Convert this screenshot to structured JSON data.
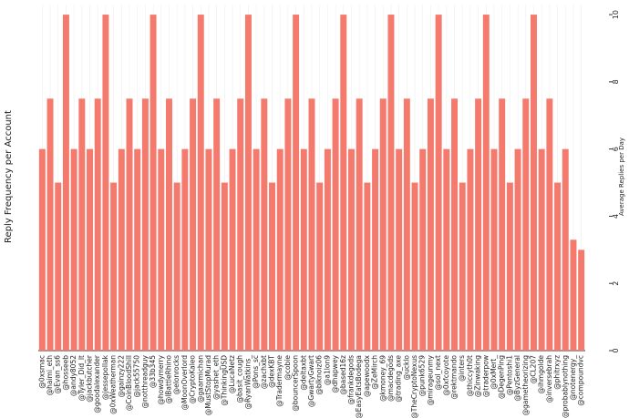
{
  "chart_data": {
    "type": "bar",
    "y_label": "Reply Frequency per Account",
    "y2_label": "Average Replies per Day",
    "categories": [
      "@0xsmac",
      "@haimi_eth",
      "@Evan_ss6",
      "@hosseeb",
      "@andy8052",
      "@Tyler_Did_It",
      "@jackbutcher",
      "@goodalexander",
      "@jessepollak",
      "@0xWeatherman",
      "@gainzy222",
      "@CoinBloodShill",
      "@jack55750",
      "@notthreadguy",
      "@33b345",
      "@howdymerry",
      "@lBattleRhino",
      "@elonrocks",
      "@MoonOverlord",
      "@CryptoKaleo",
      "@gaarmichan",
      "@MustStopMurad",
      "@yashet_eth",
      "@ThinkingUSD",
      "@LucaNetz",
      "@basit_cough",
      "@RyanWatkins_",
      "@Pons_sc",
      "@zachxbt",
      "@dexKBT",
      "@Tradermayne",
      "@cobie",
      "@bouncerSpoon",
      "@deltaxbt",
      "@GwartyGwart",
      "@blknoiz06",
      "@a1lon9",
      "@dhapwey",
      "@based16z",
      "@frankdegods",
      "@EasyEatsBodega",
      "@apewoodx",
      "@ZeMirch",
      "@kmoney_69",
      "@macdegods",
      "@trading_axe",
      "@ucklo",
      "@TheCryptoNexus",
      "@punk6529",
      "@mirageunmy",
      "@sol_next",
      "@0xfcoyote",
      "@rektmando",
      "@inters",
      "@thiccyth0t",
      "@Zinwaking",
      "@traderpow",
      "@0xMert_",
      "@DegenPing",
      "@Pentoshi1",
      "@ByzGeneral",
      "@gametheorizing",
      "@CL207",
      "@ihmgolde",
      "@inversebrah",
      "@phitrxyz",
      "@probablynothing",
      "@notenergy_",
      "@compoundvc"
    ],
    "values": [
      6,
      7.5,
      5,
      10,
      6,
      7.5,
      6,
      7.5,
      10,
      5,
      6,
      7.5,
      6,
      7.5,
      10,
      6,
      7.5,
      5,
      6,
      7.5,
      10,
      6,
      7.5,
      5,
      6,
      7.5,
      10,
      6,
      7.5,
      5,
      6,
      7.5,
      10,
      6,
      7.5,
      5,
      6,
      7.5,
      10,
      6,
      7.5,
      5,
      6,
      7.5,
      10,
      6,
      7.5,
      5,
      6,
      7.5,
      10,
      6,
      7.5,
      5,
      6,
      7.5,
      10,
      6,
      7.5,
      5,
      6,
      7.5,
      10,
      6,
      7.5,
      5,
      6,
      3.3,
      3
    ],
    "color": "#f47a6e",
    "ylim": [
      0,
      10.3
    ],
    "yticks": [
      0,
      2,
      4,
      6,
      8,
      10
    ],
    "grid": true
  }
}
